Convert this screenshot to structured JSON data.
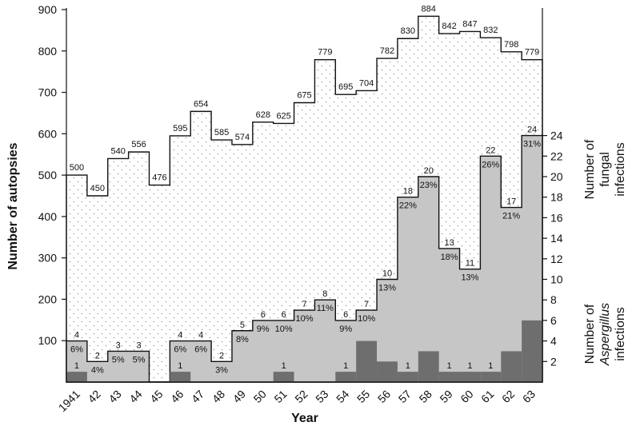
{
  "chart_data": {
    "type": "bar",
    "xlabel": "Year",
    "ylabel_left": "Number of autopsies",
    "ylabel_right_top": [
      "Number of",
      "fungal",
      "infections"
    ],
    "ylabel_right_bottom": [
      "Number of",
      "Aspergillus",
      "infections"
    ],
    "ylim_left": [
      0,
      900
    ],
    "ylim_right": [
      0,
      24
    ],
    "left_ticks": [
      100,
      200,
      300,
      400,
      500,
      600,
      700,
      800,
      900
    ],
    "right_ticks": [
      2,
      4,
      6,
      8,
      10,
      12,
      14,
      16,
      18,
      20,
      22,
      24
    ],
    "categories": [
      "1941",
      "42",
      "43",
      "44",
      "45",
      "46",
      "47",
      "48",
      "49",
      "50",
      "51",
      "52",
      "53",
      "54",
      "55",
      "56",
      "57",
      "58",
      "59",
      "60",
      "61",
      "62",
      "63"
    ],
    "series": [
      {
        "name": "Number of autopsies",
        "values": [
          500,
          450,
          540,
          556,
          476,
          595,
          654,
          585,
          574,
          628,
          625,
          675,
          779,
          695,
          704,
          782,
          830,
          884,
          842,
          847,
          832,
          798,
          779
        ],
        "labels": [
          "500",
          "450",
          "540",
          "556",
          "476",
          "595",
          "654",
          "585",
          "574",
          "628",
          "625",
          "675",
          "779",
          "695",
          "704",
          "782",
          "830",
          "884",
          "842",
          "847",
          "832",
          "798",
          "779"
        ]
      },
      {
        "name": "Number of fungal infections",
        "values": [
          4,
          2,
          3,
          3,
          0,
          4,
          4,
          2,
          5,
          6,
          6,
          7,
          8,
          6,
          7,
          10,
          18,
          20,
          13,
          11,
          22,
          17,
          24
        ],
        "labels": [
          "4",
          "2",
          "3",
          "3",
          "",
          "4",
          "4",
          "2",
          "5",
          "6",
          "6",
          "7",
          "8",
          "6",
          "7",
          "10",
          "18",
          "20",
          "13",
          "11",
          "22",
          "17",
          "24"
        ],
        "percent_labels": [
          "6%",
          "4%",
          "5%",
          "5%",
          "",
          "6%",
          "6%",
          "3%",
          "8%",
          "9%",
          "10%",
          "10%",
          "11%",
          "9%",
          "10%",
          "13%",
          "22%",
          "23%",
          "18%",
          "13%",
          "26%",
          "21%",
          "31%"
        ]
      },
      {
        "name": "Number of Aspergillus infections",
        "values": [
          1,
          0,
          0,
          0,
          0,
          1,
          0,
          0,
          0,
          0,
          1,
          0,
          0,
          1,
          4,
          2,
          1,
          3,
          1,
          1,
          1,
          3,
          6
        ],
        "labels": [
          "1",
          "",
          "",
          "",
          "",
          "1",
          "",
          "",
          "",
          "",
          "1",
          "",
          "",
          "1",
          "",
          "",
          "1",
          "",
          "1",
          "1",
          "1",
          "",
          ""
        ]
      }
    ],
    "colors": {
      "autopsies_fill": "#ffffff",
      "fungal_fill": "#c6c6c6",
      "aspergillus_fill": "#6e6e6e",
      "stipple": "#9a9a9a",
      "line": "#111111"
    }
  }
}
